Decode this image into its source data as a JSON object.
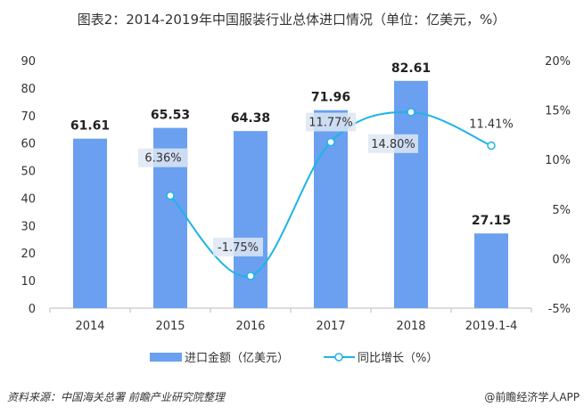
{
  "chart_data": {
    "type": "bar+line",
    "title": "图表2：2014-2019年中国服装行业总体进口情况（单位：亿美元，%）",
    "categories": [
      "2014",
      "2015",
      "2016",
      "2017",
      "2018",
      "2019.1-4"
    ],
    "series": [
      {
        "name": "进口金额（亿美元）",
        "type": "bar",
        "axis": "left",
        "color": "#6aa0ef",
        "values": [
          61.61,
          65.53,
          64.38,
          71.96,
          82.61,
          27.15
        ],
        "labels": [
          "61.61",
          "65.53",
          "64.38",
          "71.96",
          "82.61",
          "27.15"
        ]
      },
      {
        "name": "同比增长（%）",
        "type": "line",
        "axis": "right",
        "color": "#1fb3e8",
        "values": [
          null,
          6.36,
          -1.75,
          11.77,
          14.8,
          11.41
        ],
        "labels": [
          "",
          "6.36%",
          "-1.75%",
          "11.77%",
          "14.80%",
          "11.41%"
        ]
      }
    ],
    "left_axis": {
      "ylim": [
        0,
        90
      ],
      "ticks": [
        "0",
        "10",
        "20",
        "30",
        "40",
        "50",
        "60",
        "70",
        "80",
        "90"
      ]
    },
    "right_axis": {
      "ylim": [
        -5,
        20
      ],
      "ticks": [
        "-5%",
        "0%",
        "5%",
        "10%",
        "15%",
        "20%"
      ]
    },
    "legend": "bottom",
    "grid": false
  },
  "footer": {
    "source": "资料来源：中国海关总署 前瞻产业研究院整理",
    "brand": "@前瞻经济学人APP"
  }
}
